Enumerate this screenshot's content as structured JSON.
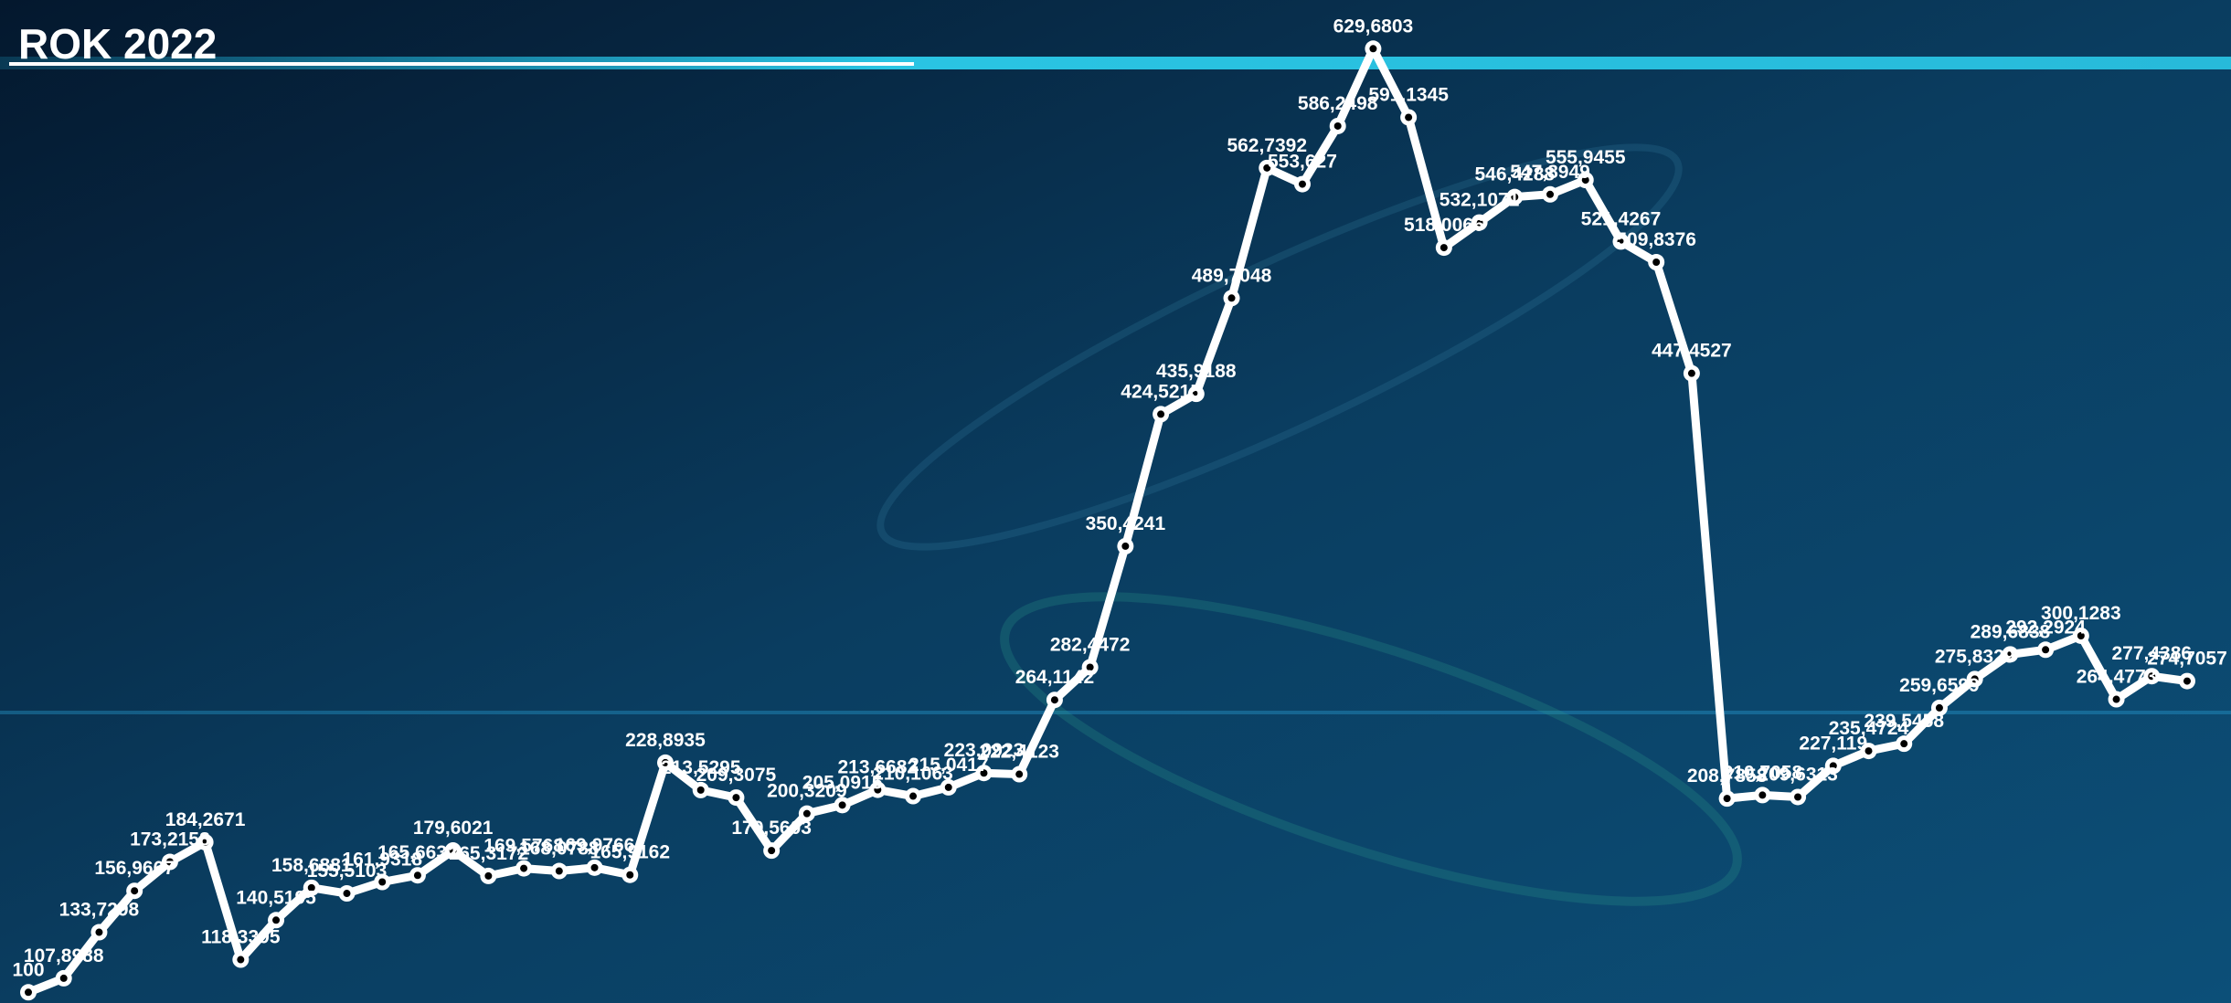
{
  "chart_data": {
    "type": "line",
    "title": "ROK 2022",
    "color": "#ffffff",
    "ylim": [
      94,
      657
    ],
    "values": [
      100,
      107.8988,
      133.7298,
      156.9667,
      173.2158,
      184.2671,
      118.3395,
      140.5195,
      158.6881,
      155.5103,
      161.9318,
      165.6632,
      179.6021,
      165.3172,
      169.5768,
      168.0788,
      169.9766,
      165.9162,
      228.8935,
      213.5295,
      209.3075,
      179.5603,
      200.3209,
      205.0915,
      213.6682,
      210.1063,
      215.0417,
      223.0923,
      222.4123,
      264.1142,
      282.4472,
      350.4241,
      424.5215,
      435.9188,
      489.7048,
      562.7392,
      553.627,
      586.2498,
      629.6803,
      591.1345,
      518.0066,
      532.1071,
      546.4288,
      547.8949,
      555.9455,
      521.4267,
      509.8376,
      447.4527,
      208.7858,
      210.7058,
      209.6313,
      227.119,
      235.4724,
      239.5458,
      259.6599,
      275.8329,
      289.6838,
      292.2924,
      300.1283,
      264.4773,
      277.4386,
      274.7057
    ],
    "value_labels": [
      "100",
      "107,8988",
      "133,7298",
      "156,9667",
      "173,2158",
      "184,2671",
      "118,3395",
      "140,5195",
      "158,6881",
      "155,5103",
      "161,9318",
      "165,6632",
      "179,6021",
      "165,3172",
      "169,5768",
      "168,0788",
      "169,9766",
      "165,9162",
      "228,8935",
      "213,5295",
      "209,3075",
      "179,5603",
      "200,3209",
      "205,0915",
      "213,6682",
      "210,1063",
      "215,0417",
      "223,0923",
      "222,4123",
      "264,1142",
      "282,4472",
      "350,4241",
      "424,5215",
      "435,9188",
      "489,7048",
      "562,7392",
      "553,627",
      "586,2498",
      "629,6803",
      "591,1345",
      "518,0066",
      "532,1071",
      "546,4288",
      "547,8949",
      "555,9455",
      "521,4267",
      "509,8376",
      "447,4527",
      "208,7858",
      "210,7058",
      "209,6313",
      "227,119",
      "235,4724",
      "239,5458",
      "259,6599",
      "275,8329",
      "289,6838",
      "292,2924",
      "300,1283",
      "264,4773",
      "277,4386",
      "274,7057"
    ]
  }
}
